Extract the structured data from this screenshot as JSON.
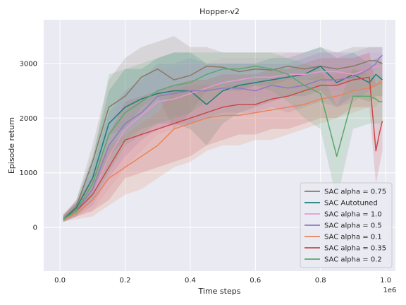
{
  "chart_data": {
    "type": "line",
    "title": "Hopper-v2",
    "xlabel": "Time steps",
    "ylabel": "Episode return",
    "x_offset_label": "1e6",
    "xlim": [
      -0.05,
      1.03
    ],
    "ylim": [
      -800,
      3800
    ],
    "xticks": [
      0.0,
      0.2,
      0.4,
      0.6,
      0.8,
      1.0
    ],
    "xtick_labels": [
      "0.0",
      "0.2",
      "0.4",
      "0.6",
      "0.8",
      "1.0"
    ],
    "yticks": [
      0,
      1000,
      2000,
      3000
    ],
    "ytick_labels": [
      "0",
      "1000",
      "2000",
      "3000"
    ],
    "grid": true,
    "legend_position": "lower right",
    "background_color": "#eaeaf2",
    "x": [
      0.01,
      0.05,
      0.1,
      0.15,
      0.2,
      0.25,
      0.3,
      0.35,
      0.4,
      0.45,
      0.5,
      0.55,
      0.6,
      0.65,
      0.7,
      0.75,
      0.8,
      0.85,
      0.9,
      0.95,
      0.97,
      0.98,
      0.99
    ],
    "series": [
      {
        "name": "SAC alpha = 0.75",
        "color": "#8c7863",
        "values": [
          150,
          380,
          1200,
          2200,
          2400,
          2750,
          2900,
          2700,
          2780,
          2950,
          2930,
          2850,
          2900,
          2880,
          2950,
          2900,
          2950,
          2900,
          2950,
          3050,
          3050,
          3020,
          3000
        ],
        "lower": [
          100,
          300,
          900,
          1700,
          1800,
          2200,
          2400,
          1800,
          2100,
          2500,
          2600,
          2500,
          2600,
          2600,
          2700,
          2700,
          2700,
          2600,
          2700,
          2800,
          2800,
          2800,
          2800
        ],
        "upper": [
          200,
          500,
          1500,
          2700,
          3100,
          3300,
          3400,
          3500,
          3300,
          3300,
          3200,
          3200,
          3200,
          3200,
          3200,
          3200,
          3300,
          3200,
          3300,
          3300,
          3300,
          3300,
          3300
        ]
      },
      {
        "name": "SAC Autotuned",
        "color": "#1a7f7a",
        "values": [
          150,
          350,
          900,
          1900,
          2200,
          2350,
          2450,
          2500,
          2500,
          2250,
          2500,
          2600,
          2650,
          2700,
          2750,
          2800,
          2950,
          2650,
          2800,
          2650,
          2800,
          2750,
          2700
        ],
        "lower": [
          100,
          250,
          600,
          1300,
          1600,
          1800,
          1900,
          1900,
          1800,
          1500,
          1900,
          2100,
          2200,
          2300,
          2400,
          2400,
          2500,
          2200,
          2400,
          2300,
          2400,
          2400,
          2400
        ],
        "upper": [
          220,
          500,
          1300,
          2500,
          2900,
          2900,
          3100,
          3200,
          3200,
          3000,
          3000,
          3000,
          3000,
          3100,
          3100,
          3200,
          3300,
          3100,
          3200,
          3000,
          3100,
          3100,
          3000
        ]
      },
      {
        "name": "SAC alpha = 1.0",
        "color": "#e59ad2",
        "values": [
          150,
          300,
          600,
          1300,
          1800,
          2050,
          2300,
          2350,
          2450,
          2550,
          2650,
          2700,
          2750,
          2750,
          2800,
          2800,
          2850,
          2850,
          2800,
          2900,
          2950,
          2950,
          2950
        ],
        "lower": [
          100,
          200,
          300,
          700,
          1100,
          1400,
          1700,
          1800,
          1900,
          2100,
          2200,
          2300,
          2400,
          2400,
          2400,
          2500,
          2500,
          2500,
          2500,
          2600,
          2600,
          2600,
          2600
        ],
        "upper": [
          250,
          500,
          1000,
          1900,
          2500,
          2700,
          2900,
          2900,
          3000,
          3000,
          3100,
          3100,
          3100,
          3100,
          3200,
          3200,
          3200,
          3200,
          3100,
          3200,
          3200,
          3200,
          3200
        ]
      },
      {
        "name": "SAC alpha = 0.5",
        "color": "#8d7bc4",
        "values": [
          150,
          300,
          700,
          1500,
          1900,
          2100,
          2400,
          2450,
          2500,
          2500,
          2550,
          2550,
          2500,
          2600,
          2550,
          2600,
          2700,
          2700,
          2750,
          2900,
          3000,
          3100,
          3150
        ],
        "lower": [
          100,
          200,
          400,
          900,
          1300,
          1600,
          1800,
          1900,
          1900,
          2000,
          2100,
          2100,
          2100,
          2200,
          2100,
          2200,
          2300,
          2200,
          2300,
          2500,
          2600,
          2700,
          2800
        ],
        "upper": [
          220,
          450,
          1100,
          2100,
          2500,
          2700,
          3000,
          3000,
          3100,
          3000,
          3000,
          3000,
          3000,
          3000,
          3000,
          3100,
          3200,
          3200,
          3200,
          3300,
          3300,
          3300,
          3300
        ]
      },
      {
        "name": "SAC alpha = 0.1",
        "color": "#e8845a",
        "values": [
          150,
          250,
          500,
          900,
          1100,
          1300,
          1500,
          1800,
          1900,
          2000,
          2050,
          2050,
          2100,
          2150,
          2200,
          2250,
          2350,
          2400,
          2500,
          2550,
          2600,
          2650,
          2650
        ],
        "lower": [
          100,
          150,
          200,
          400,
          600,
          700,
          900,
          1100,
          1200,
          1400,
          1500,
          1500,
          1600,
          1600,
          1700,
          1800,
          1900,
          2000,
          2100,
          2200,
          2200,
          2300,
          2300
        ],
        "upper": [
          250,
          450,
          900,
          1500,
          1700,
          1900,
          2100,
          2500,
          2600,
          2600,
          2600,
          2600,
          2600,
          2700,
          2700,
          2700,
          2800,
          2800,
          2900,
          2900,
          3000,
          3000,
          3000
        ]
      },
      {
        "name": "SAC alpha = 0.35",
        "color": "#c9484d",
        "values": [
          150,
          300,
          600,
          1100,
          1600,
          1700,
          1800,
          1900,
          2000,
          2100,
          2200,
          2250,
          2250,
          2350,
          2400,
          2500,
          2600,
          2600,
          2700,
          2750,
          1400,
          1700,
          1950
        ],
        "lower": [
          100,
          200,
          300,
          500,
          900,
          1000,
          1100,
          1200,
          1300,
          1500,
          1600,
          1700,
          1700,
          1800,
          1800,
          1900,
          2000,
          2000,
          2200,
          2200,
          800,
          1100,
          1400
        ],
        "upper": [
          220,
          450,
          900,
          1700,
          2300,
          2400,
          2500,
          2600,
          2700,
          2700,
          2800,
          2800,
          2800,
          2900,
          2900,
          3000,
          3100,
          3100,
          3100,
          3200,
          2600,
          2700,
          2800
        ]
      },
      {
        "name": "SAC alpha = 0.2",
        "color": "#5aa86a",
        "values": [
          150,
          300,
          800,
          1700,
          2100,
          2300,
          2500,
          2600,
          2650,
          2800,
          2900,
          2900,
          2950,
          2900,
          2800,
          2600,
          2450,
          1300,
          2400,
          2400,
          2350,
          2300,
          2300
        ],
        "lower": [
          100,
          200,
          500,
          1000,
          1500,
          1700,
          1900,
          2000,
          2100,
          2300,
          2500,
          2500,
          2600,
          2500,
          2300,
          2000,
          1800,
          500,
          1800,
          1900,
          1900,
          1900,
          1900
        ],
        "upper": [
          220,
          450,
          1200,
          2800,
          2900,
          3000,
          3100,
          3200,
          3200,
          3200,
          3200,
          3200,
          3200,
          3200,
          3100,
          3000,
          2900,
          2200,
          2900,
          2800,
          2800,
          2800,
          2800
        ]
      }
    ]
  }
}
